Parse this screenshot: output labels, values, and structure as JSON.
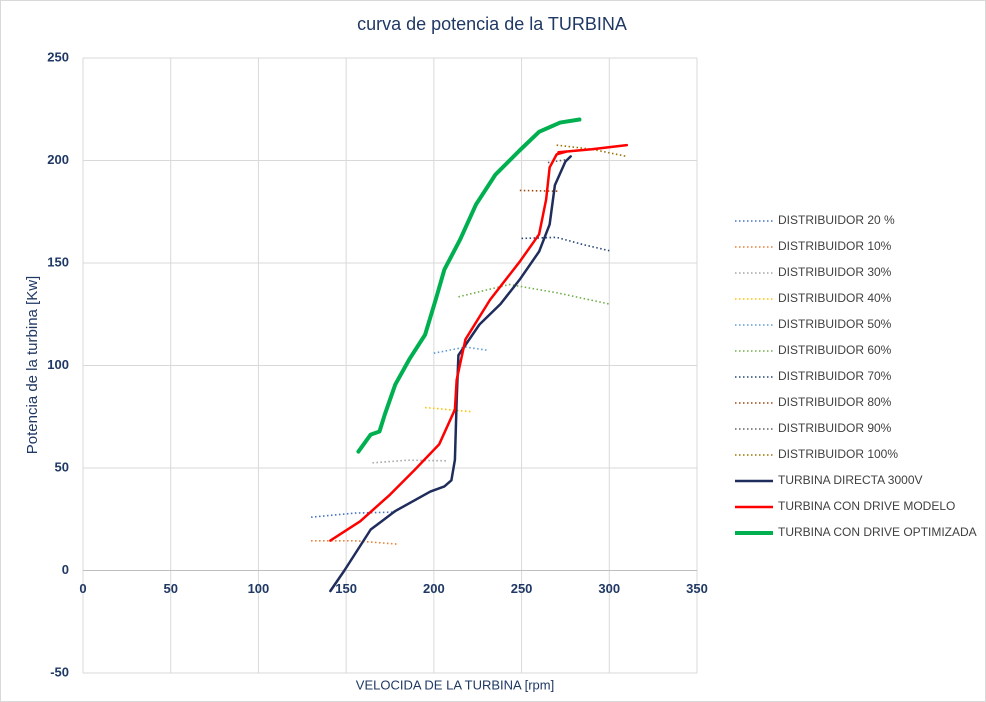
{
  "chart_data": {
    "type": "line",
    "title": "curva de potencia de la TURBINA",
    "x_label": "VELOCIDA DE LA TURBINA [rpm]",
    "y_label": "Potencia de la turbina [Kw]",
    "xlim": [
      0,
      350
    ],
    "xticks": [
      0,
      50,
      100,
      150,
      200,
      250,
      300,
      350
    ],
    "ylim": [
      -50,
      250
    ],
    "yticks": [
      -50,
      0,
      50,
      100,
      150,
      200,
      250
    ],
    "grid": true,
    "legend": "right",
    "series": [
      {
        "name": "DISTRIBUIDOR 20 %",
        "color": "#4472c4",
        "style": "dotted",
        "x": [
          130,
          155,
          178
        ],
        "values": [
          26,
          28,
          28.5
        ]
      },
      {
        "name": "DISTRIBUIDOR 10%",
        "color": "#ed7d31",
        "style": "dotted",
        "x": [
          130,
          155,
          180
        ],
        "values": [
          14.5,
          14.5,
          12.8
        ]
      },
      {
        "name": "DISTRIBUIDOR 30%",
        "color": "#a5a5a5",
        "style": "dotted",
        "x": [
          165,
          185,
          208
        ],
        "values": [
          52.5,
          53.8,
          53.5
        ]
      },
      {
        "name": "DISTRIBUIDOR 40%",
        "color": "#ffc000",
        "style": "dotted",
        "x": [
          195,
          221
        ],
        "values": [
          79.5,
          77.5
        ]
      },
      {
        "name": "DISTRIBUIDOR 50%",
        "color": "#5b9bd5",
        "style": "dotted",
        "x": [
          200,
          218,
          230
        ],
        "values": [
          106,
          109,
          107.5
        ]
      },
      {
        "name": "DISTRIBUIDOR 60%",
        "color": "#70ad47",
        "style": "dotted",
        "x": [
          214,
          243,
          270,
          300
        ],
        "values": [
          133.5,
          139.5,
          135.5,
          130
        ]
      },
      {
        "name": "DISTRIBUIDOR 70%",
        "color": "#264478",
        "style": "dotted",
        "x": [
          250,
          270,
          285,
          300
        ],
        "values": [
          162,
          162.5,
          159,
          156
        ]
      },
      {
        "name": "DISTRIBUIDOR 80%",
        "color": "#9e480e",
        "style": "dotted",
        "x": [
          249,
          271
        ],
        "values": [
          185.4,
          185
        ]
      },
      {
        "name": "DISTRIBUIDOR 90%",
        "color": "#636363",
        "style": "dotted",
        "x": [
          265,
          276
        ],
        "values": [
          199,
          200.5
        ]
      },
      {
        "name": "DISTRIBUIDOR 100%",
        "color": "#997300",
        "style": "dotted",
        "x": [
          270,
          290,
          310
        ],
        "values": [
          207.5,
          205.5,
          202
        ]
      },
      {
        "name": "TURBINA DIRECTA 3000V",
        "color": "#1f2d5c",
        "style": "solid",
        "width": 2.5,
        "x": [
          141,
          149,
          164,
          178,
          198,
          206,
          210,
          212,
          213,
          214,
          226,
          238,
          249,
          260,
          266,
          269,
          275,
          278
        ],
        "values": [
          -10,
          0,
          20,
          29,
          38.5,
          41,
          44,
          54,
          83,
          105,
          120,
          130,
          142,
          155.6,
          168.8,
          188,
          199.5,
          202
        ]
      },
      {
        "name": "TURBINA CON DRIVE MODELO",
        "color": "#ff0000",
        "style": "solid",
        "width": 2.5,
        "x": [
          141,
          158,
          175,
          189,
          203,
          212,
          213,
          218,
          232,
          249,
          260,
          264,
          266,
          270,
          276,
          271,
          290,
          310
        ],
        "values": [
          14.6,
          24,
          37,
          49,
          61.5,
          78.5,
          93,
          112.7,
          132,
          150.7,
          164,
          181,
          196.6,
          203,
          204.4,
          204,
          205.5,
          207.5
        ]
      },
      {
        "name": "TURBINA CON DRIVE OPTIMIZADA",
        "color": "#00b050",
        "style": "solid",
        "width": 4,
        "x": [
          157,
          164,
          169,
          172,
          178,
          186,
          195,
          201,
          206,
          215,
          224,
          235,
          249,
          260,
          272,
          283
        ],
        "values": [
          58,
          66.3,
          67.8,
          76,
          90.7,
          103,
          115,
          132,
          146.8,
          161.5,
          178.5,
          193,
          205,
          214,
          218.5,
          220
        ]
      }
    ]
  }
}
